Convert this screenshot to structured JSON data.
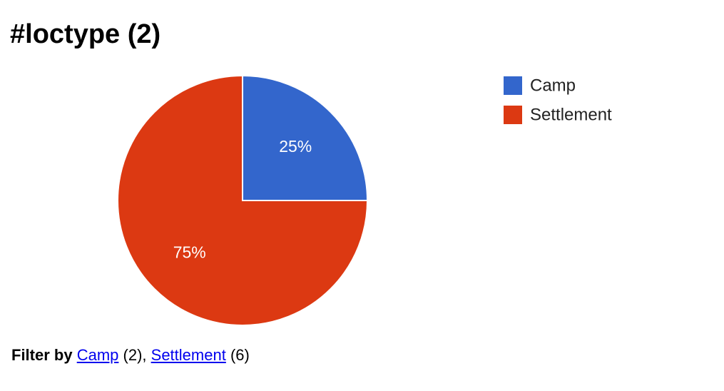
{
  "page": {
    "title": "#loctype (2)"
  },
  "chart_data": {
    "type": "pie",
    "categories": [
      "Camp",
      "Settlement"
    ],
    "values": [
      25,
      75
    ],
    "slice_labels": [
      "25%",
      "75%"
    ],
    "colors": [
      "#3366cc",
      "#dc3912"
    ],
    "legend": {
      "position": "right",
      "items": [
        {
          "label": "Camp",
          "color": "#3366cc"
        },
        {
          "label": "Settlement",
          "color": "#dc3912"
        }
      ]
    }
  },
  "filter": {
    "label": "Filter by",
    "items": [
      {
        "name": "Camp",
        "count": "(2)"
      },
      {
        "name": "Settlement",
        "count": "(6)"
      }
    ],
    "separator": ", "
  }
}
